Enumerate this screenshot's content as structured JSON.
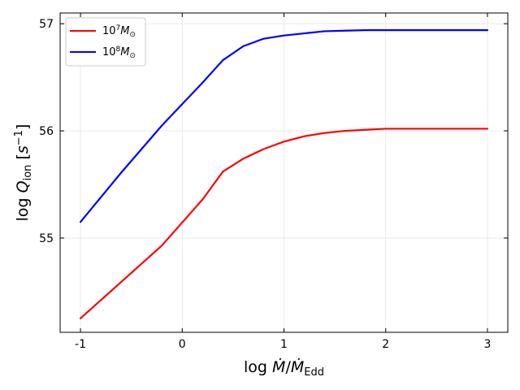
{
  "chart_data": {
    "type": "line",
    "title": "",
    "xlabel": "log Ṁ/Ṁ_Edd",
    "ylabel": "log Q_ion [s^-1]",
    "xlim": [
      -1.2,
      3.2
    ],
    "ylim": [
      54.12,
      57.1
    ],
    "xticks": [
      -1,
      0,
      1,
      2,
      3
    ],
    "xtick_labels": [
      "-1",
      "0",
      "1",
      "2",
      "3"
    ],
    "yticks": [
      55,
      56,
      57
    ],
    "ytick_labels": [
      "55",
      "56",
      "57"
    ],
    "grid": true,
    "legend_position": "top-left",
    "series": [
      {
        "name": "10^7 M_⊙",
        "color": "#ff0000",
        "x": [
          -1.0,
          -0.6,
          -0.2,
          0.2,
          0.4,
          0.6,
          0.8,
          1.0,
          1.2,
          1.4,
          1.6,
          1.8,
          2.0,
          2.5,
          3.0
        ],
        "y": [
          54.25,
          54.59,
          54.93,
          55.36,
          55.62,
          55.74,
          55.83,
          55.9,
          55.95,
          55.98,
          56.0,
          56.01,
          56.02,
          56.02,
          56.02
        ]
      },
      {
        "name": "10^8 M_⊙",
        "color": "#0000ff",
        "x": [
          -1.0,
          -0.6,
          -0.2,
          0.2,
          0.4,
          0.6,
          0.8,
          1.0,
          1.2,
          1.4,
          1.6,
          1.8,
          2.0,
          2.5,
          3.0
        ],
        "y": [
          55.15,
          55.61,
          56.05,
          56.45,
          56.66,
          56.79,
          56.86,
          56.89,
          56.91,
          56.93,
          56.935,
          56.94,
          56.94,
          56.94,
          56.94
        ]
      }
    ]
  }
}
